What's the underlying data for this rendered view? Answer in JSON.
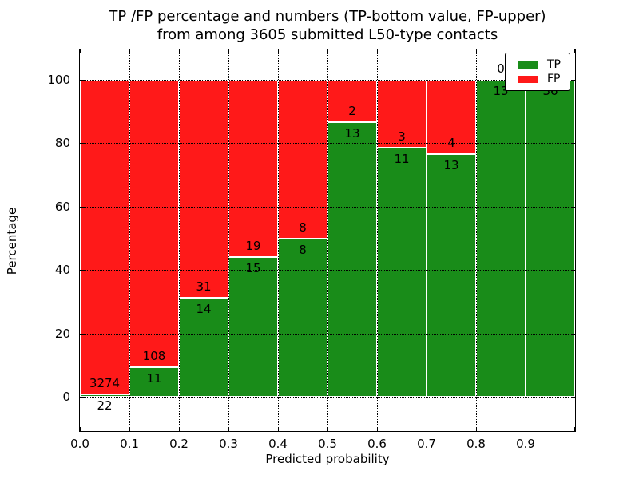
{
  "figure": {
    "title_line1": "TP /FP percentage and numbers (TP-bottom value, FP-upper)",
    "title_line2": "from among 3605 submitted L50-type contacts",
    "xlabel": "Predicted probability",
    "ylabel": "Percentage"
  },
  "chart_data": {
    "type": "bar",
    "subtype": "stacked-percentage-histogram",
    "title": "TP /FP percentage and numbers (TP-bottom value, FP-upper) from among 3605 submitted L50-type contacts",
    "xlabel": "Predicted probability",
    "ylabel": "Percentage",
    "total_submitted_contacts": 3605,
    "bin_width": 0.1,
    "bins": [
      "0.0-0.1",
      "0.1-0.2",
      "0.2-0.3",
      "0.3-0.4",
      "0.4-0.5",
      "0.5-0.6",
      "0.6-0.7",
      "0.7-0.8",
      "0.8-0.9",
      "0.9-1.0"
    ],
    "x_tick_labels": [
      "0.0",
      "0.1",
      "0.2",
      "0.3",
      "0.4",
      "0.5",
      "0.6",
      "0.7",
      "0.8",
      "0.9"
    ],
    "y_ticks": [
      0,
      20,
      40,
      60,
      80,
      100
    ],
    "xlim": [
      0.0,
      1.0
    ],
    "ylim": [
      -10.8,
      109.6
    ],
    "grid": true,
    "bar_edge_color": "#ffffff",
    "series": [
      {
        "name": "TP",
        "color": "#198c19",
        "values": [
          22,
          11,
          14,
          15,
          8,
          13,
          11,
          13,
          13,
          36
        ]
      },
      {
        "name": "FP",
        "color": "#ff1919",
        "values": [
          3274,
          108,
          31,
          19,
          8,
          2,
          3,
          4,
          0,
          0
        ]
      }
    ],
    "bar_value_labels_note": "TP count drawn just below the TP/FP boundary, FP count just above it",
    "legend": {
      "position": "upper right",
      "entries": [
        {
          "label": "TP",
          "color": "#198c19"
        },
        {
          "label": "FP",
          "color": "#ff1919"
        }
      ]
    }
  }
}
